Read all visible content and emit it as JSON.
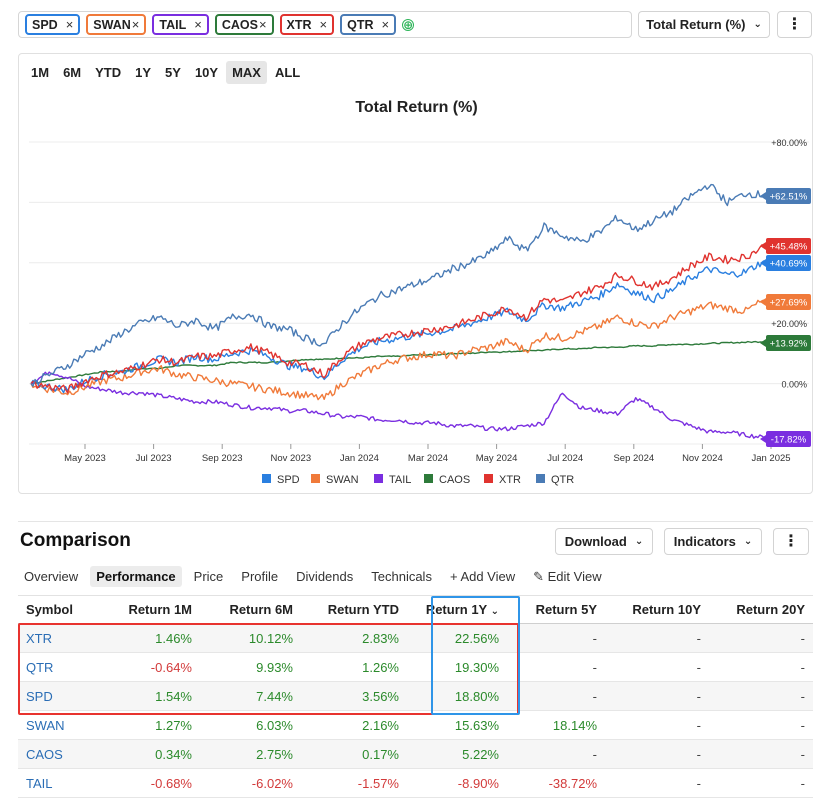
{
  "tickers": [
    {
      "symbol": "SPD",
      "color": "#2a7fe0"
    },
    {
      "symbol": "SWAN",
      "color": "#f07a3a"
    },
    {
      "symbol": "TAIL",
      "color": "#7a2ee0"
    },
    {
      "symbol": "CAOS",
      "color": "#2d7a3a"
    },
    {
      "symbol": "XTR",
      "color": "#e0332f"
    },
    {
      "symbol": "QTR",
      "color": "#4a7bb5"
    }
  ],
  "chip_close": "×",
  "toolbar": {
    "metric_label": "Total Return (%)",
    "more_icon": "kebab-icon"
  },
  "time_ranges": [
    "1M",
    "6M",
    "YTD",
    "1Y",
    "5Y",
    "10Y",
    "MAX",
    "ALL"
  ],
  "active_range": "MAX",
  "chart_data": {
    "type": "line",
    "title": "Total Return (%)",
    "x_ticks": [
      "May 2023",
      "Jul 2023",
      "Sep 2023",
      "Nov 2023",
      "Jan 2024",
      "Mar 2024",
      "May 2024",
      "Jul 2024",
      "Sep 2024",
      "Nov 2024",
      "Jan 2025"
    ],
    "y_ticks": [
      "+80.00%",
      "+20.00%",
      "0.00%"
    ],
    "ylim": [
      -20,
      80
    ],
    "grid": true,
    "legend": "bottom",
    "series": [
      {
        "name": "SPD",
        "color": "#2a7fe0",
        "final": "+40.69%",
        "values": [
          0,
          -1,
          -2,
          1,
          3,
          4,
          6,
          8,
          7,
          9,
          8,
          10,
          11,
          9,
          6,
          5,
          2,
          8,
          12,
          14,
          15,
          16,
          17,
          18,
          20,
          22,
          24,
          21,
          26,
          25,
          27,
          29,
          33,
          30,
          28,
          31,
          35,
          38,
          36,
          37,
          40.69
        ]
      },
      {
        "name": "SWAN",
        "color": "#f07a3a",
        "final": "+27.69%",
        "values": [
          0,
          -2,
          -3,
          -1,
          1,
          2,
          4,
          5,
          3,
          2,
          1,
          0,
          -1,
          -2,
          -3,
          -4,
          -5,
          0,
          3,
          6,
          8,
          9,
          10,
          9,
          11,
          12,
          14,
          11,
          16,
          15,
          17,
          19,
          22,
          20,
          19,
          22,
          24,
          26,
          25,
          24,
          27.69
        ]
      },
      {
        "name": "TAIL",
        "color": "#7a2ee0",
        "final": "-17.82%",
        "values": [
          0,
          4,
          2,
          -1,
          -2,
          -3,
          -3,
          -4,
          -5,
          -6,
          -6,
          -7,
          -8,
          -8,
          -9,
          -9,
          -10,
          -11,
          -11,
          -12,
          -12,
          -13,
          -13,
          -14,
          -14,
          -15,
          -15,
          -14,
          -13,
          -3,
          -8,
          -9,
          -10,
          -5,
          -8,
          -12,
          -14,
          -16,
          -16,
          -17,
          -17.82
        ]
      },
      {
        "name": "CAOS",
        "color": "#2d7a3a",
        "final": "+13.92%",
        "values": [
          0,
          1,
          2,
          3,
          4,
          4,
          5,
          5,
          6,
          6,
          6,
          7,
          7,
          7,
          7.5,
          8,
          8,
          8.5,
          8.5,
          9,
          9,
          9.5,
          9.5,
          10,
          10,
          10.5,
          10.5,
          11,
          11,
          11.5,
          11.5,
          12,
          12,
          12.5,
          12.5,
          13,
          13,
          13.3,
          13.5,
          13.7,
          13.92
        ]
      },
      {
        "name": "XTR",
        "color": "#e0332f",
        "final": "+45.48%",
        "values": [
          0,
          -1,
          -2,
          1,
          3,
          4,
          6,
          8,
          7,
          9,
          9,
          11,
          12,
          10,
          7,
          6,
          3,
          9,
          13,
          15,
          16,
          17,
          18,
          19,
          21,
          23,
          25,
          22,
          28,
          27,
          30,
          32,
          36,
          34,
          32,
          35,
          39,
          42,
          41,
          42,
          45.48
        ]
      },
      {
        "name": "QTR",
        "color": "#4a7bb5",
        "final": "+62.51%",
        "values": [
          0,
          3,
          6,
          10,
          13,
          17,
          20,
          22,
          19,
          21,
          18,
          22,
          23,
          19,
          18,
          15,
          13,
          20,
          25,
          29,
          31,
          33,
          35,
          38,
          40,
          43,
          48,
          44,
          52,
          49,
          47,
          50,
          55,
          51,
          54,
          57,
          62,
          66,
          60,
          63,
          62.51
        ]
      }
    ]
  },
  "comparison": {
    "title": "Comparison",
    "download_label": "Download",
    "indicators_label": "Indicators",
    "tabs": [
      "Overview",
      "Performance",
      "Price",
      "Profile",
      "Dividends",
      "Technicals"
    ],
    "active_tab": "Performance",
    "add_view_label": "+ Add View",
    "edit_view_label": "✎ Edit View",
    "columns": [
      "Symbol",
      "Return 1M",
      "Return 6M",
      "Return YTD",
      "Return 1Y",
      "Return 5Y",
      "Return 10Y",
      "Return 20Y"
    ],
    "sorted_column_indicator": "⌄",
    "rows": [
      [
        "XTR",
        "1.46%",
        "10.12%",
        "2.83%",
        "22.56%",
        "-",
        "-",
        "-"
      ],
      [
        "QTR",
        "-0.64%",
        "9.93%",
        "1.26%",
        "19.30%",
        "-",
        "-",
        "-"
      ],
      [
        "SPD",
        "1.54%",
        "7.44%",
        "3.56%",
        "18.80%",
        "-",
        "-",
        "-"
      ],
      [
        "SWAN",
        "1.27%",
        "6.03%",
        "2.16%",
        "15.63%",
        "18.14%",
        "-",
        "-"
      ],
      [
        "CAOS",
        "0.34%",
        "2.75%",
        "0.17%",
        "5.22%",
        "-",
        "-",
        "-"
      ],
      [
        "TAIL",
        "-0.68%",
        "-6.02%",
        "-1.57%",
        "-8.90%",
        "-38.72%",
        "-",
        "-"
      ]
    ]
  },
  "highlight_colors": {
    "rows_box": "#e8332f",
    "column_box": "#2f95e8"
  }
}
